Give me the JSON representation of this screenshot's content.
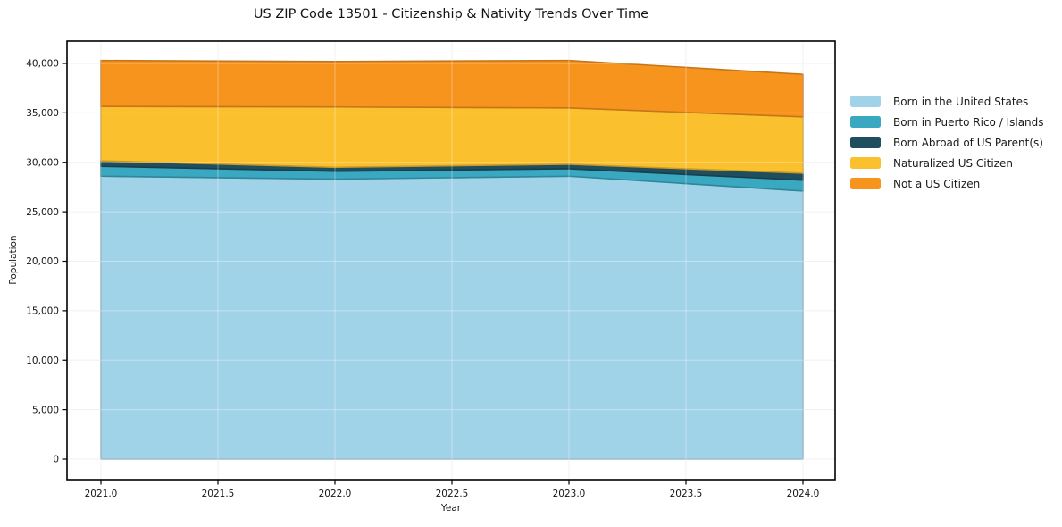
{
  "figure": {
    "background": "#ffffff",
    "text_color": "#151515",
    "grid_color": "#ececec",
    "spine_color": "#000000"
  },
  "chart_data": {
    "type": "area",
    "stacked": true,
    "title": "US ZIP Code 13501 - Citizenship & Nativity Trends Over Time",
    "xlabel": "Year",
    "ylabel": "Population",
    "x": [
      2021,
      2022,
      2023,
      2024
    ],
    "series": [
      {
        "name": "Born in the United States",
        "color": "#A1D3E8",
        "values": [
          28600,
          28300,
          28600,
          27100
        ]
      },
      {
        "name": "Born in Puerto Rico / Islands",
        "color": "#3AA8C1",
        "values": [
          1000,
          800,
          750,
          1100
        ]
      },
      {
        "name": "Born Abroad of US Parent(s)",
        "color": "#1F4E5F",
        "values": [
          550,
          400,
          450,
          700
        ]
      },
      {
        "name": "Naturalized US Citizen",
        "color": "#FBC02D",
        "values": [
          5500,
          6100,
          5700,
          5700
        ]
      },
      {
        "name": "Not a US Citizen",
        "color": "#F7941E",
        "values": [
          4650,
          4600,
          4800,
          4300
        ]
      }
    ],
    "totals": [
      40300,
      40200,
      40300,
      38900
    ],
    "x_ticks": [
      {
        "value": 2021.0,
        "label": "2021.0"
      },
      {
        "value": 2021.5,
        "label": "2021.5"
      },
      {
        "value": 2022.0,
        "label": "2022.0"
      },
      {
        "value": 2022.5,
        "label": "2022.5"
      },
      {
        "value": 2023.0,
        "label": "2023.0"
      },
      {
        "value": 2023.5,
        "label": "2023.5"
      },
      {
        "value": 2024.0,
        "label": "2024.0"
      }
    ],
    "y_ticks": [
      {
        "value": 0,
        "label": "0"
      },
      {
        "value": 5000,
        "label": "5,000"
      },
      {
        "value": 10000,
        "label": "10,000"
      },
      {
        "value": 15000,
        "label": "15,000"
      },
      {
        "value": 20000,
        "label": "20,000"
      },
      {
        "value": 25000,
        "label": "25,000"
      },
      {
        "value": 30000,
        "label": "30,000"
      },
      {
        "value": 35000,
        "label": "35,000"
      },
      {
        "value": 40000,
        "label": "40,000"
      }
    ],
    "xlim": [
      2020.855,
      2024.145
    ],
    "ylim": [
      -2080,
      42260
    ],
    "grid": true,
    "legend_position": "right-outside"
  }
}
